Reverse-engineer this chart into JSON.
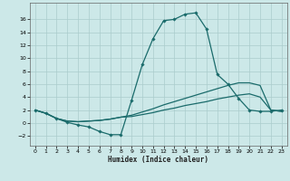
{
  "title": "",
  "xlabel": "Humidex (Indice chaleur)",
  "ylabel": "",
  "background_color": "#cce8e8",
  "grid_color": "#aacccc",
  "line_color": "#1a6b6b",
  "xlim": [
    -0.5,
    23.5
  ],
  "ylim": [
    -3.5,
    18.5
  ],
  "xticks": [
    0,
    1,
    2,
    3,
    4,
    5,
    6,
    7,
    8,
    9,
    10,
    11,
    12,
    13,
    14,
    15,
    16,
    17,
    18,
    19,
    20,
    21,
    22,
    23
  ],
  "yticks": [
    -2,
    0,
    2,
    4,
    6,
    8,
    10,
    12,
    14,
    16
  ],
  "line1_y": [
    2.0,
    1.5,
    0.7,
    0.1,
    -0.3,
    -0.6,
    -1.3,
    -1.8,
    -1.8,
    3.5,
    9.0,
    13.0,
    15.8,
    16.0,
    16.8,
    17.0,
    14.5,
    7.5,
    6.0,
    3.8,
    2.0,
    1.8,
    1.8,
    2.0
  ],
  "line2_y": [
    2.0,
    1.5,
    0.7,
    0.3,
    0.2,
    0.3,
    0.4,
    0.6,
    0.9,
    1.2,
    1.7,
    2.2,
    2.8,
    3.3,
    3.8,
    4.3,
    4.8,
    5.3,
    5.8,
    6.2,
    6.2,
    5.8,
    2.0,
    1.8
  ],
  "line3_y": [
    2.0,
    1.5,
    0.7,
    0.3,
    0.2,
    0.3,
    0.4,
    0.6,
    0.9,
    1.0,
    1.3,
    1.6,
    2.0,
    2.3,
    2.7,
    3.0,
    3.3,
    3.7,
    4.0,
    4.3,
    4.5,
    4.0,
    2.0,
    1.8
  ],
  "figsize": [
    3.2,
    2.0
  ],
  "dpi": 100
}
